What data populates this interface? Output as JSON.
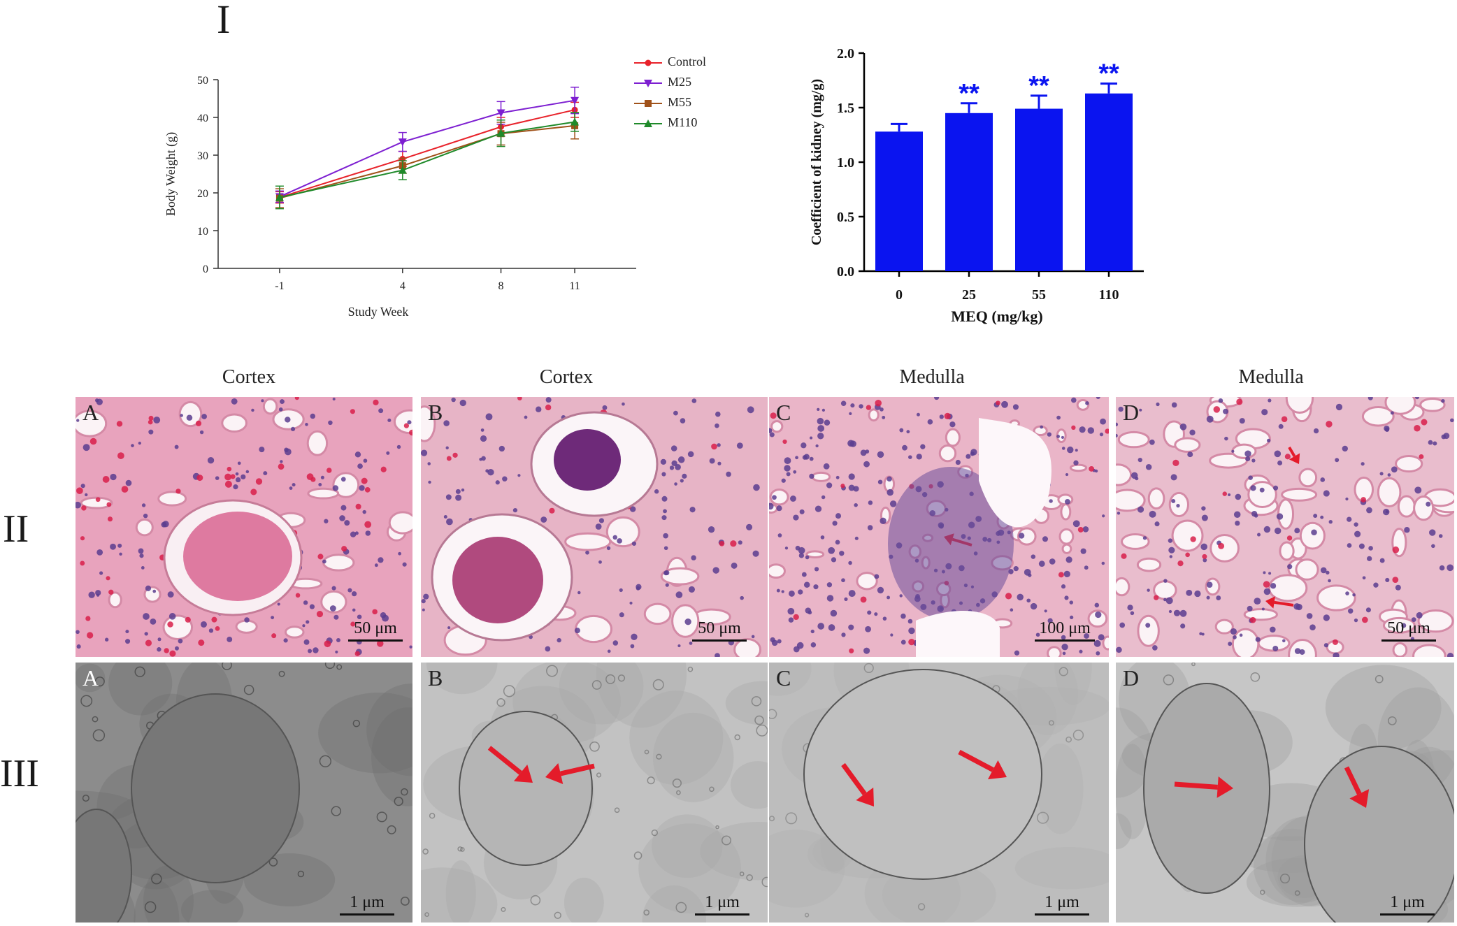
{
  "sections": {
    "I": "I",
    "II": "II",
    "III": "III"
  },
  "chart_data": [
    {
      "type": "line",
      "title": "",
      "xlabel": "Study Week",
      "ylabel": "Body Weight (g)",
      "x": [
        "-1",
        "4",
        "8",
        "11"
      ],
      "ylim": [
        0,
        50
      ],
      "yticks": [
        0,
        10,
        20,
        30,
        40,
        50
      ],
      "legend_position": "top-right",
      "series": [
        {
          "name": "Control",
          "color": "#e8222a",
          "marker": "circle",
          "values": [
            18.8,
            29.0,
            37.5,
            42.0
          ],
          "errors": [
            1.5,
            2.0,
            2.5,
            2.0
          ]
        },
        {
          "name": "M25",
          "color": "#7d1fd1",
          "marker": "triangle-down",
          "values": [
            19.0,
            33.5,
            41.2,
            44.5
          ],
          "errors": [
            1.5,
            2.5,
            3.0,
            3.5
          ]
        },
        {
          "name": "M55",
          "color": "#a0521a",
          "marker": "square",
          "values": [
            18.6,
            27.2,
            35.7,
            37.8
          ],
          "errors": [
            2.5,
            2.0,
            3.0,
            3.5
          ]
        },
        {
          "name": "M110",
          "color": "#1f8a2a",
          "marker": "triangle-up",
          "values": [
            18.8,
            26.0,
            35.8,
            38.8
          ],
          "errors": [
            3.0,
            2.5,
            3.5,
            2.5
          ]
        }
      ]
    },
    {
      "type": "bar",
      "title": "",
      "xlabel": "MEQ  (mg/kg)",
      "ylabel": "Coefficient of kidney (mg/g)",
      "categories": [
        "0",
        "25",
        "55",
        "110"
      ],
      "ylim": [
        0,
        2.0
      ],
      "yticks": [
        "0.0",
        "0.5",
        "1.0",
        "1.5",
        "2.0"
      ],
      "values": [
        1.28,
        1.45,
        1.49,
        1.63
      ],
      "errors": [
        0.07,
        0.09,
        0.12,
        0.09
      ],
      "significance": [
        "",
        "**",
        "**",
        "**"
      ],
      "color": "#0a14f0"
    }
  ],
  "histology": {
    "col_titles": [
      "Cortex",
      "Cortex",
      "Medulla",
      "Medulla"
    ],
    "he_panels": [
      {
        "label": "A",
        "scale": "50 μm"
      },
      {
        "label": "B",
        "scale": "50 μm"
      },
      {
        "label": "C",
        "scale": "100 μm"
      },
      {
        "label": "D",
        "scale": "50 μm"
      }
    ],
    "em_panels": [
      {
        "label": "A",
        "scale": "1 μm"
      },
      {
        "label": "B",
        "scale": "1 μm"
      },
      {
        "label": "C",
        "scale": "1 μm"
      },
      {
        "label": "D",
        "scale": "1 μm"
      }
    ]
  },
  "colors": {
    "arrow": "#e41b2a",
    "he_bg": "#e9a9c0",
    "em_bg": "#b9b9b9"
  }
}
